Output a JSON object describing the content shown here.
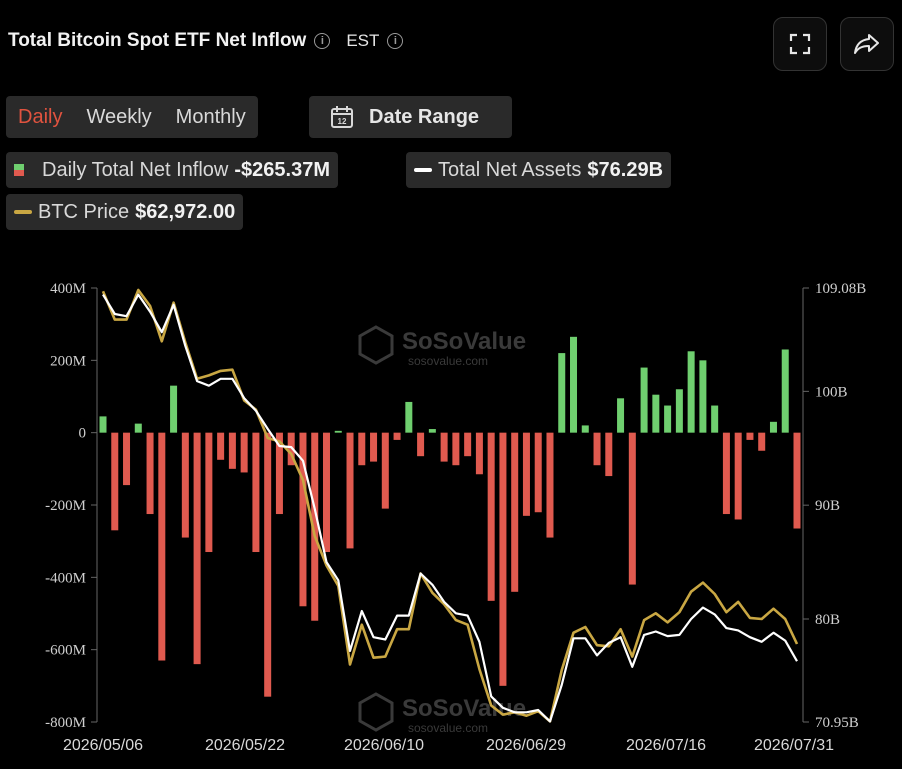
{
  "header": {
    "title": "Total Bitcoin Spot ETF Net Inflow",
    "timezone": "EST"
  },
  "tabs": [
    {
      "label": "Daily",
      "active": true
    },
    {
      "label": "Weekly",
      "active": false
    },
    {
      "label": "Monthly",
      "active": false
    }
  ],
  "date_range": {
    "label": "Date Range"
  },
  "legend": {
    "inflow": {
      "label": "Daily Total Net Inflow",
      "value": "-$265.37M"
    },
    "assets": {
      "label": "Total Net Assets",
      "value": "$76.29B"
    },
    "btc": {
      "label": "BTC Price",
      "value": "$62,972.00"
    }
  },
  "watermark": {
    "brand": "SoSoValue",
    "url": "sosovalue.com"
  },
  "colors": {
    "positive": "#6fcf6f",
    "negative": "#e05a4f",
    "assets": "#ffffff",
    "btc": "#c9a743",
    "accent": "#e0533f"
  },
  "chart_data": {
    "type": "bar",
    "x_labels": [
      "2026/05/06",
      "2026/05/22",
      "2026/06/10",
      "2026/06/29",
      "2026/07/16",
      "2026/07/31"
    ],
    "left_ticks": [
      "400M",
      "200M",
      "0",
      "-200M",
      "-400M",
      "-600M",
      "-800M"
    ],
    "right_ticks": [
      "109.08B",
      "100B",
      "90B",
      "80B",
      "70.95B"
    ],
    "left_ylim": [
      -800,
      400
    ],
    "right_ylim": [
      70.95,
      109.08
    ],
    "series": [
      {
        "name": "Daily Total Net Inflow",
        "type": "bar",
        "unit": "M",
        "values": [
          45,
          -270,
          -145,
          25,
          -225,
          -630,
          130,
          -290,
          -640,
          -330,
          -75,
          -100,
          -110,
          -330,
          -730,
          -225,
          -90,
          -480,
          -520,
          -330,
          5,
          -320,
          -90,
          -80,
          -210,
          -20,
          85,
          -65,
          10,
          -80,
          -90,
          -65,
          -115,
          -465,
          -700,
          -440,
          -230,
          -220,
          -290,
          220,
          265,
          20,
          -90,
          -120,
          95,
          -420,
          180,
          105,
          75,
          120,
          225,
          200,
          75,
          -225,
          -240,
          -20,
          -50,
          30,
          230,
          -265
        ]
      },
      {
        "name": "Total Net Assets",
        "type": "line",
        "unit": "B",
        "values": [
          108.5,
          106.8,
          106.6,
          108.5,
          107.0,
          105.2,
          107.6,
          104.0,
          100.9,
          100.5,
          101.1,
          101.1,
          99.4,
          98.3,
          96.7,
          95.2,
          95.1,
          93.9,
          89.7,
          85.0,
          83.4,
          77.2,
          80.7,
          78.4,
          78.2,
          80.3,
          80.3,
          84.0,
          83.0,
          81.5,
          80.5,
          80.3,
          78.0,
          73.2,
          72.2,
          71.8,
          71.8,
          72.0,
          71.0,
          74.2,
          78.3,
          78.3,
          76.8,
          77.9,
          78.4,
          75.8,
          78.6,
          78.9,
          78.5,
          78.6,
          80.0,
          81.0,
          80.4,
          79.2,
          79.0,
          78.4,
          78.0,
          78.8,
          78.1,
          76.29
        ]
      },
      {
        "name": "BTC Price",
        "type": "line",
        "unit": "scaled to right axis",
        "values": [
          108.8,
          106.3,
          106.3,
          108.9,
          107.5,
          104.4,
          107.8,
          104.3,
          101.1,
          101.4,
          101.8,
          101.9,
          99.2,
          98.4,
          95.9,
          95.6,
          94.5,
          92.2,
          87.3,
          84.7,
          82.9,
          76.0,
          79.5,
          76.6,
          76.7,
          79.1,
          79.1,
          84.0,
          82.3,
          81.3,
          79.9,
          79.5,
          75.6,
          72.4,
          71.6,
          71.8,
          71.5,
          71.9,
          71.0,
          75.5,
          78.8,
          79.3,
          77.7,
          77.6,
          79.1,
          76.7,
          79.9,
          80.5,
          79.7,
          80.6,
          82.4,
          83.2,
          82.2,
          80.6,
          81.5,
          80.1,
          80.0,
          80.9,
          80.0,
          77.8
        ]
      }
    ],
    "legend_position": "top",
    "grid": false
  }
}
